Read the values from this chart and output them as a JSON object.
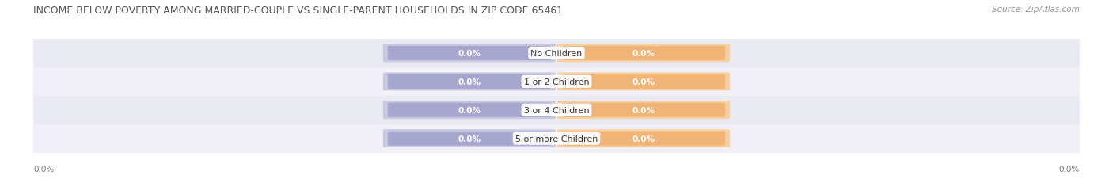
{
  "title": "INCOME BELOW POVERTY AMONG MARRIED-COUPLE VS SINGLE-PARENT HOUSEHOLDS IN ZIP CODE 65461",
  "source": "Source: ZipAtlas.com",
  "categories": [
    "No Children",
    "1 or 2 Children",
    "3 or 4 Children",
    "5 or more Children"
  ],
  "married_values": [
    0.0,
    0.0,
    0.0,
    0.0
  ],
  "single_values": [
    0.0,
    0.0,
    0.0,
    0.0
  ],
  "married_color": "#a0a0cc",
  "single_color": "#f0b070",
  "married_bg_color": "#c8c8e0",
  "single_bg_color": "#f5d0a0",
  "row_colors": [
    "#eaeaf2",
    "#f0f0f6",
    "#eaeaf2",
    "#f0f0f6"
  ],
  "background_color": "#ffffff",
  "title_fontsize": 9,
  "source_fontsize": 7.5,
  "label_fontsize": 7.5,
  "cat_fontsize": 8,
  "legend_fontsize": 8,
  "axis_label": "0.0%"
}
